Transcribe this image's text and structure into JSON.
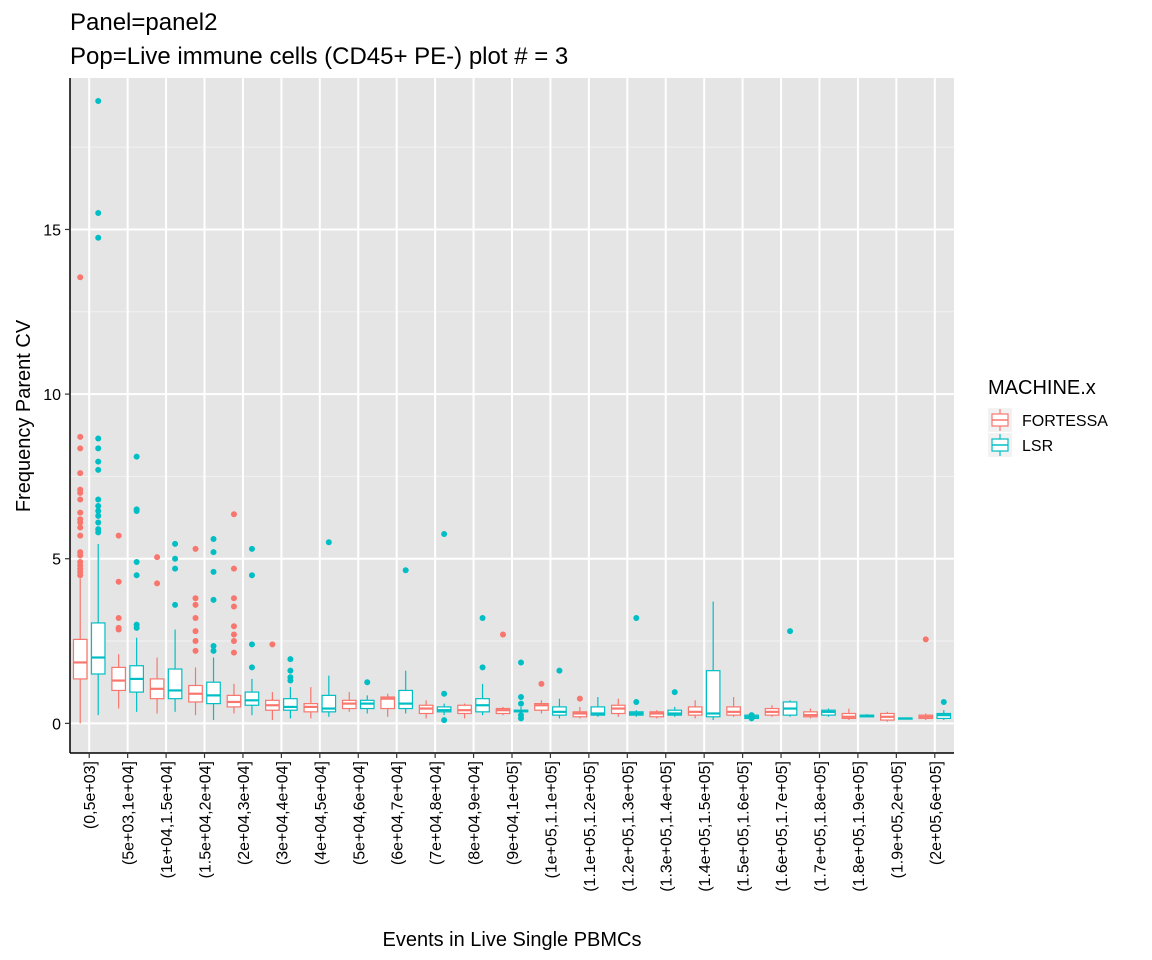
{
  "title_line1": "Panel=panel2",
  "title_line2": "Pop=Live immune cells (CD45+ PE-) plot # = 3",
  "chart_data": {
    "type": "box",
    "xlabel": "Events in Live Single PBMCs",
    "ylabel": "Frequency Parent CV",
    "ylim": [
      -0.9,
      19.6
    ],
    "yticks": [
      0,
      5,
      10,
      15
    ],
    "grid": true,
    "legend": {
      "title": "MACHINE.x",
      "position": "right",
      "entries": [
        {
          "name": "FORTESSA",
          "color": "#F8766D"
        },
        {
          "name": "LSR",
          "color": "#00BFC4"
        }
      ]
    },
    "categories": [
      "(0,5e+03]",
      "(5e+03,1e+04]",
      "(1e+04,1.5e+04]",
      "(1.5e+04,2e+04]",
      "(2e+04,3e+04]",
      "(3e+04,4e+04]",
      "(4e+04,5e+04]",
      "(5e+04,6e+04]",
      "(6e+04,7e+04]",
      "(7e+04,8e+04]",
      "(8e+04,9e+04]",
      "(9e+04,1e+05]",
      "(1e+05,1.1e+05]",
      "(1.1e+05,1.2e+05]",
      "(1.2e+05,1.3e+05]",
      "(1.3e+05,1.4e+05]",
      "(1.4e+05,1.5e+05]",
      "(1.5e+05,1.6e+05]",
      "(1.6e+05,1.7e+05]",
      "(1.7e+05,1.8e+05]",
      "(1.8e+05,1.9e+05]",
      "(1.9e+05,2e+05]",
      "(2e+05,6e+05]"
    ],
    "series": [
      {
        "name": "FORTESSA",
        "color": "#F8766D",
        "boxes": [
          {
            "min": 0.0,
            "q1": 1.35,
            "median": 1.85,
            "q3": 2.55,
            "max": 4.4,
            "outliers": [
              4.5,
              4.6,
              4.7,
              4.8,
              4.9,
              5.1,
              5.2,
              5.7,
              5.95,
              6.1,
              6.2,
              6.4,
              6.8,
              7.0,
              7.1,
              7.6,
              8.35,
              8.7,
              13.55
            ]
          },
          {
            "min": 0.45,
            "q1": 1.0,
            "median": 1.3,
            "q3": 1.7,
            "max": 2.1,
            "outliers": [
              2.85,
              2.9,
              3.2,
              4.3,
              5.7
            ]
          },
          {
            "min": 0.3,
            "q1": 0.75,
            "median": 1.05,
            "q3": 1.35,
            "max": 2.0,
            "outliers": [
              4.25,
              5.05
            ]
          },
          {
            "min": 0.25,
            "q1": 0.65,
            "median": 0.9,
            "q3": 1.15,
            "max": 1.7,
            "outliers": [
              2.2,
              2.5,
              2.8,
              3.2,
              3.6,
              3.8,
              5.3
            ]
          },
          {
            "min": 0.3,
            "q1": 0.5,
            "median": 0.65,
            "q3": 0.85,
            "max": 1.2,
            "outliers": [
              2.15,
              2.5,
              2.7,
              2.95,
              3.55,
              3.8,
              4.7,
              6.35
            ]
          },
          {
            "min": 0.1,
            "q1": 0.4,
            "median": 0.55,
            "q3": 0.7,
            "max": 0.95,
            "outliers": [
              2.4
            ]
          },
          {
            "min": 0.15,
            "q1": 0.35,
            "median": 0.5,
            "q3": 0.6,
            "max": 1.1,
            "outliers": []
          },
          {
            "min": 0.35,
            "q1": 0.45,
            "median": 0.6,
            "q3": 0.7,
            "max": 0.95,
            "outliers": []
          },
          {
            "min": 0.2,
            "q1": 0.45,
            "median": 0.75,
            "q3": 0.8,
            "max": 0.9,
            "outliers": []
          },
          {
            "min": 0.15,
            "q1": 0.3,
            "median": 0.45,
            "q3": 0.55,
            "max": 0.7,
            "outliers": []
          },
          {
            "min": 0.15,
            "q1": 0.3,
            "median": 0.4,
            "q3": 0.55,
            "max": 0.6,
            "outliers": []
          },
          {
            "min": 0.25,
            "q1": 0.3,
            "median": 0.4,
            "q3": 0.45,
            "max": 0.5,
            "outliers": [
              2.7
            ]
          },
          {
            "min": 0.3,
            "q1": 0.4,
            "median": 0.55,
            "q3": 0.6,
            "max": 0.7,
            "outliers": [
              1.2
            ]
          },
          {
            "min": 0.15,
            "q1": 0.2,
            "median": 0.3,
            "q3": 0.35,
            "max": 0.5,
            "outliers": [
              0.75
            ]
          },
          {
            "min": 0.2,
            "q1": 0.3,
            "median": 0.45,
            "q3": 0.55,
            "max": 0.75,
            "outliers": []
          },
          {
            "min": 0.15,
            "q1": 0.2,
            "median": 0.3,
            "q3": 0.35,
            "max": 0.4,
            "outliers": []
          },
          {
            "min": 0.15,
            "q1": 0.25,
            "median": 0.35,
            "q3": 0.5,
            "max": 0.7,
            "outliers": []
          },
          {
            "min": 0.2,
            "q1": 0.25,
            "median": 0.35,
            "q3": 0.5,
            "max": 0.8,
            "outliers": []
          },
          {
            "min": 0.2,
            "q1": 0.25,
            "median": 0.35,
            "q3": 0.45,
            "max": 0.55,
            "outliers": []
          },
          {
            "min": 0.15,
            "q1": 0.2,
            "median": 0.25,
            "q3": 0.35,
            "max": 0.45,
            "outliers": []
          },
          {
            "min": 0.1,
            "q1": 0.15,
            "median": 0.2,
            "q3": 0.3,
            "max": 0.45,
            "outliers": []
          },
          {
            "min": 0.05,
            "q1": 0.1,
            "median": 0.2,
            "q3": 0.3,
            "max": 0.35,
            "outliers": []
          },
          {
            "min": 0.1,
            "q1": 0.15,
            "median": 0.2,
            "q3": 0.25,
            "max": 0.3,
            "outliers": [
              2.55
            ]
          }
        ]
      },
      {
        "name": "LSR",
        "color": "#00BFC4",
        "boxes": [
          {
            "min": 0.25,
            "q1": 1.5,
            "median": 2.0,
            "q3": 3.05,
            "max": 5.45,
            "outliers": [
              5.8,
              5.9,
              6.1,
              6.3,
              6.45,
              6.6,
              6.8,
              7.7,
              7.95,
              8.35,
              8.65,
              14.75,
              15.5,
              18.9
            ]
          },
          {
            "min": 0.35,
            "q1": 0.95,
            "median": 1.35,
            "q3": 1.75,
            "max": 2.6,
            "outliers": [
              2.9,
              3.0,
              4.5,
              4.9,
              6.45,
              6.5,
              8.1
            ]
          },
          {
            "min": 0.35,
            "q1": 0.75,
            "median": 1.0,
            "q3": 1.65,
            "max": 2.85,
            "outliers": [
              3.6,
              4.7,
              5.0,
              5.45
            ]
          },
          {
            "min": 0.1,
            "q1": 0.6,
            "median": 0.85,
            "q3": 1.25,
            "max": 2.0,
            "outliers": [
              2.2,
              2.35,
              3.75,
              4.6,
              5.2,
              5.6
            ]
          },
          {
            "min": 0.25,
            "q1": 0.55,
            "median": 0.7,
            "q3": 0.95,
            "max": 1.35,
            "outliers": [
              1.7,
              2.4,
              4.5,
              5.3
            ]
          },
          {
            "min": 0.15,
            "q1": 0.4,
            "median": 0.5,
            "q3": 0.75,
            "max": 1.1,
            "outliers": [
              1.3,
              1.4,
              1.6,
              1.95
            ]
          },
          {
            "min": 0.2,
            "q1": 0.35,
            "median": 0.45,
            "q3": 0.85,
            "max": 1.45,
            "outliers": [
              5.5
            ]
          },
          {
            "min": 0.3,
            "q1": 0.45,
            "median": 0.6,
            "q3": 0.7,
            "max": 0.85,
            "outliers": [
              1.25
            ]
          },
          {
            "min": 0.3,
            "q1": 0.45,
            "median": 0.6,
            "q3": 1.0,
            "max": 1.6,
            "outliers": [
              4.65
            ]
          },
          {
            "min": 0.25,
            "q1": 0.35,
            "median": 0.4,
            "q3": 0.5,
            "max": 0.6,
            "outliers": [
              0.1,
              0.9,
              5.75
            ]
          },
          {
            "min": 0.25,
            "q1": 0.35,
            "median": 0.55,
            "q3": 0.75,
            "max": 1.2,
            "outliers": [
              1.7,
              3.2
            ]
          },
          {
            "min": 0.3,
            "q1": 0.35,
            "median": 0.38,
            "q3": 0.4,
            "max": 0.5,
            "outliers": [
              0.15,
              0.25,
              0.6,
              0.8,
              1.85
            ]
          },
          {
            "min": 0.15,
            "q1": 0.25,
            "median": 0.35,
            "q3": 0.5,
            "max": 0.75,
            "outliers": [
              1.6
            ]
          },
          {
            "min": 0.2,
            "q1": 0.25,
            "median": 0.3,
            "q3": 0.5,
            "max": 0.8,
            "outliers": []
          },
          {
            "min": 0.2,
            "q1": 0.25,
            "median": 0.3,
            "q3": 0.35,
            "max": 0.4,
            "outliers": [
              0.65,
              3.2
            ]
          },
          {
            "min": 0.2,
            "q1": 0.25,
            "median": 0.3,
            "q3": 0.4,
            "max": 0.5,
            "outliers": [
              0.95
            ]
          },
          {
            "min": 0.1,
            "q1": 0.2,
            "median": 0.3,
            "q3": 1.6,
            "max": 3.7,
            "outliers": []
          },
          {
            "min": 0.1,
            "q1": 0.15,
            "median": 0.2,
            "q3": 0.25,
            "max": 0.3,
            "outliers": [
              0.15,
              0.25
            ]
          },
          {
            "min": 0.2,
            "q1": 0.25,
            "median": 0.45,
            "q3": 0.65,
            "max": 0.7,
            "outliers": [
              2.8
            ]
          },
          {
            "min": 0.2,
            "q1": 0.25,
            "median": 0.35,
            "q3": 0.4,
            "max": 0.45,
            "outliers": []
          },
          {
            "min": 0.18,
            "q1": 0.2,
            "median": 0.22,
            "q3": 0.25,
            "max": 0.28,
            "outliers": []
          },
          {
            "min": 0.12,
            "q1": 0.14,
            "median": 0.15,
            "q3": 0.16,
            "max": 0.18,
            "outliers": []
          },
          {
            "min": 0.1,
            "q1": 0.15,
            "median": 0.25,
            "q3": 0.3,
            "max": 0.4,
            "outliers": [
              0.65
            ]
          }
        ]
      }
    ]
  }
}
